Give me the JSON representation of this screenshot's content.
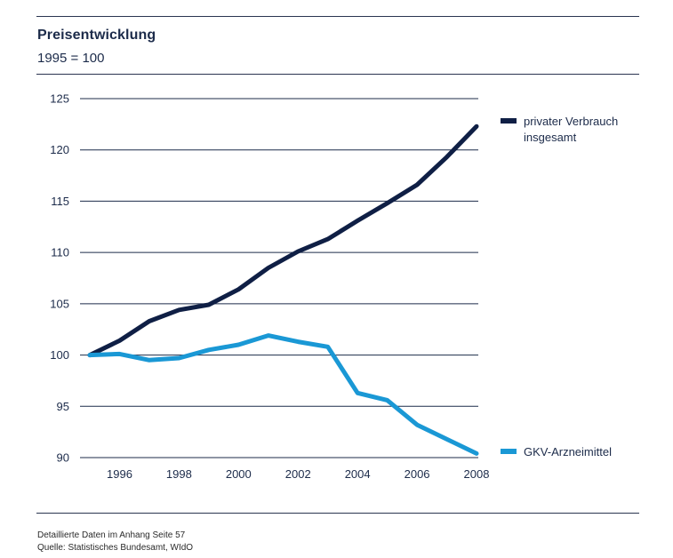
{
  "header": {
    "title": "Preisentwicklung",
    "subtitle": "1995 = 100"
  },
  "footer": {
    "note": "Detaillierte Daten im Anhang Seite 57",
    "source": "Quelle: Statistisches Bundesamt, WIdO"
  },
  "chart_data": {
    "type": "line",
    "title": "Preisentwicklung",
    "subtitle": "1995 = 100",
    "xlabel": "",
    "ylabel": "",
    "x": [
      1995,
      1996,
      1997,
      1998,
      1999,
      2000,
      2001,
      2002,
      2003,
      2004,
      2005,
      2006,
      2007,
      2008
    ],
    "xticks": [
      "1996",
      "1998",
      "2000",
      "2002",
      "2004",
      "2006",
      "2008"
    ],
    "yticks": [
      "90",
      "95",
      "100",
      "105",
      "110",
      "115",
      "120",
      "125"
    ],
    "xlim": [
      1995,
      2008
    ],
    "ylim": [
      90,
      125
    ],
    "grid": "horizontal",
    "legend": "right",
    "series": [
      {
        "name": "privater Verbrauch insgesamt",
        "color": "#0f1f45",
        "values": [
          100.0,
          101.4,
          103.3,
          104.4,
          104.9,
          106.4,
          108.5,
          110.1,
          111.3,
          113.1,
          114.8,
          116.6,
          119.3,
          122.3
        ]
      },
      {
        "name": "GKV-Arzneimittel",
        "color": "#1a98d5",
        "values": [
          100.0,
          100.1,
          99.5,
          99.7,
          100.5,
          101.0,
          101.9,
          101.3,
          100.8,
          96.3,
          95.6,
          93.2,
          91.8,
          90.4
        ]
      }
    ]
  }
}
